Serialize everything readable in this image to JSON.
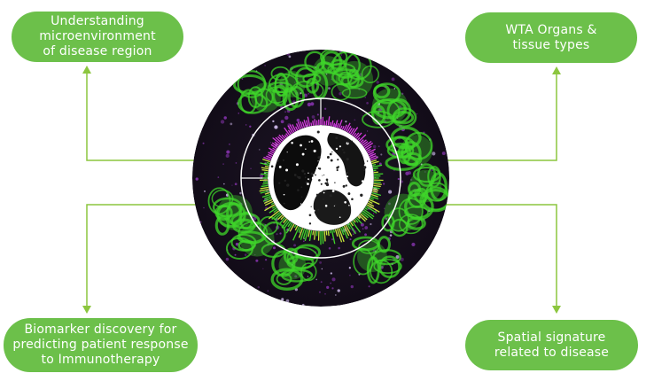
{
  "labels": {
    "top_left": "Understanding\nmicroenvironment\nof disease region",
    "top_right": "WTA Organs &\ntissue types",
    "bottom_left": "Biomarker discovery for\npredicting patient response\nto Immunotherapy",
    "bottom_right": "Spatial signature\nrelated to disease"
  },
  "colors": {
    "accent": "#6cc04a",
    "connector": "#8cc63f",
    "tissue_green": "#3fd62a",
    "tissue_purple": "#7a2f9e",
    "ring_magenta": "#d63be0",
    "background": "#ffffff"
  }
}
